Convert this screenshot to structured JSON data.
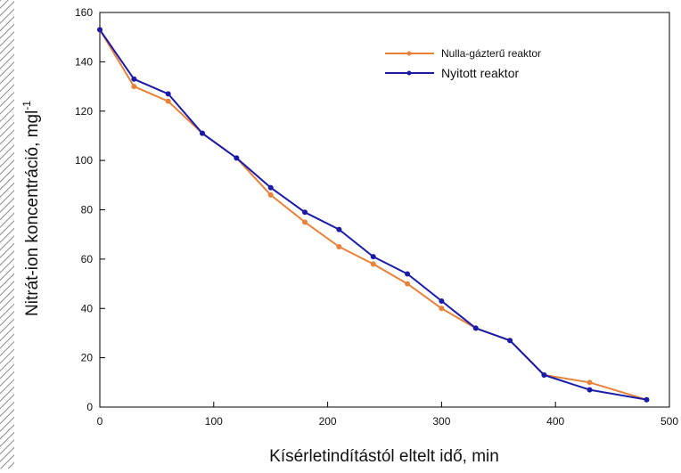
{
  "chart_data": {
    "type": "line",
    "title": "",
    "xlabel": "Kísérletindítástól eltelt idő, min",
    "ylabel": "Nitrát-ion koncentráció, mgl",
    "ylabel_superscript": "-1",
    "xlim": [
      0,
      500
    ],
    "ylim": [
      0,
      160
    ],
    "xticks": [
      "0",
      "100",
      "200",
      "300",
      "400",
      "500"
    ],
    "yticks": [
      "0",
      "20",
      "40",
      "60",
      "80",
      "100",
      "120",
      "140",
      "160"
    ],
    "grid": false,
    "legend_position": "top-right",
    "series": [
      {
        "name": "Nulla-gázterű reaktor",
        "color": "#e8823a",
        "x": [
          0,
          30,
          60,
          90,
          120,
          150,
          180,
          210,
          240,
          270,
          300,
          330,
          360,
          390,
          430,
          480
        ],
        "y": [
          153,
          130,
          124,
          111,
          101,
          86,
          75,
          65,
          58,
          50,
          40,
          32,
          27,
          13,
          10,
          3
        ]
      },
      {
        "name": "Nyitott reaktor",
        "color": "#1a1aa8",
        "x": [
          0,
          30,
          60,
          90,
          120,
          150,
          180,
          210,
          240,
          270,
          300,
          330,
          360,
          390,
          430,
          480
        ],
        "y": [
          153,
          133,
          127,
          111,
          101,
          89,
          79,
          72,
          61,
          54,
          43,
          32,
          27,
          13,
          7,
          3
        ]
      }
    ]
  }
}
